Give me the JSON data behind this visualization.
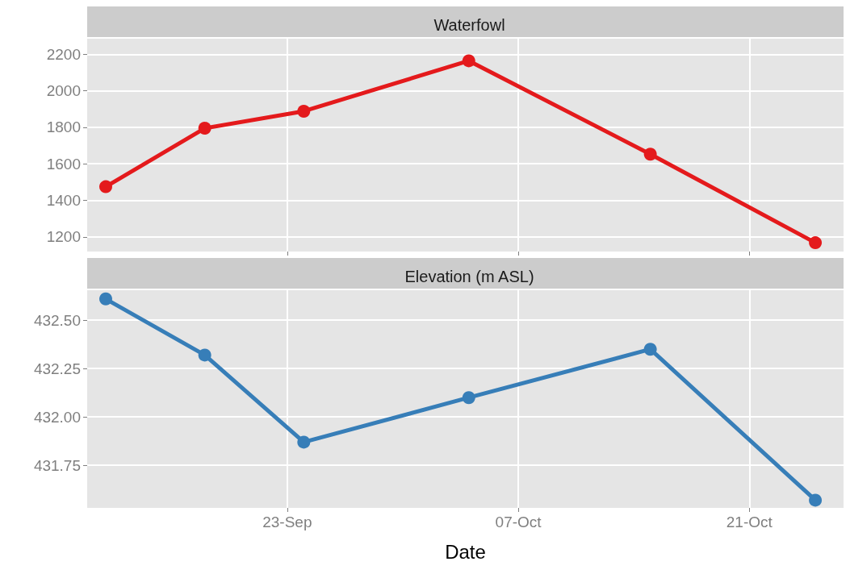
{
  "chart_data": [
    {
      "type": "line",
      "title": "Waterfowl",
      "x": [
        "--09-12",
        "--09-18",
        "--09-24",
        "--10-04",
        "--10-15",
        "--10-25"
      ],
      "series": [
        {
          "color": "#e41a1c",
          "values": [
            1475,
            1795,
            1888,
            2164,
            1653,
            1168
          ]
        }
      ],
      "xlim": [
        "--09-10T21:00",
        "--10-26T17:00"
      ],
      "xticks": [
        {
          "value": "--09-23",
          "label": "23-Sep"
        },
        {
          "value": "--10-07",
          "label": "07-Oct"
        },
        {
          "value": "--10-21",
          "label": "21-Oct"
        }
      ],
      "ylim": [
        1120,
        2285
      ],
      "yticks": [
        1200,
        1400,
        1600,
        1800,
        2000,
        2200
      ],
      "grid": true,
      "marker": "circle",
      "line_style": "solid",
      "tick_labels": "y"
    },
    {
      "type": "line",
      "title": "Elevation (m ASL)",
      "xlabel": "Date",
      "x": [
        "--09-12",
        "--09-18",
        "--09-24",
        "--10-04",
        "--10-15",
        "--10-25"
      ],
      "series": [
        {
          "color": "#377eb8",
          "values": [
            432.61,
            432.32,
            431.87,
            432.1,
            432.35,
            431.57
          ]
        }
      ],
      "xlim": [
        "--09-10T21:00",
        "--10-26T17:00"
      ],
      "xticks": [
        {
          "value": "--09-23",
          "label": "23-Sep"
        },
        {
          "value": "--10-07",
          "label": "07-Oct"
        },
        {
          "value": "--10-21",
          "label": "21-Oct"
        }
      ],
      "ylim": [
        431.53,
        432.655
      ],
      "yticks": [
        {
          "value": 431.75,
          "label": "431.75"
        },
        {
          "value": 432,
          "label": "432.00"
        },
        {
          "value": 432.25,
          "label": "432.25"
        },
        {
          "value": 432.5,
          "label": "432.50"
        }
      ],
      "grid": true,
      "marker": "circle",
      "line_style": "solid"
    }
  ]
}
